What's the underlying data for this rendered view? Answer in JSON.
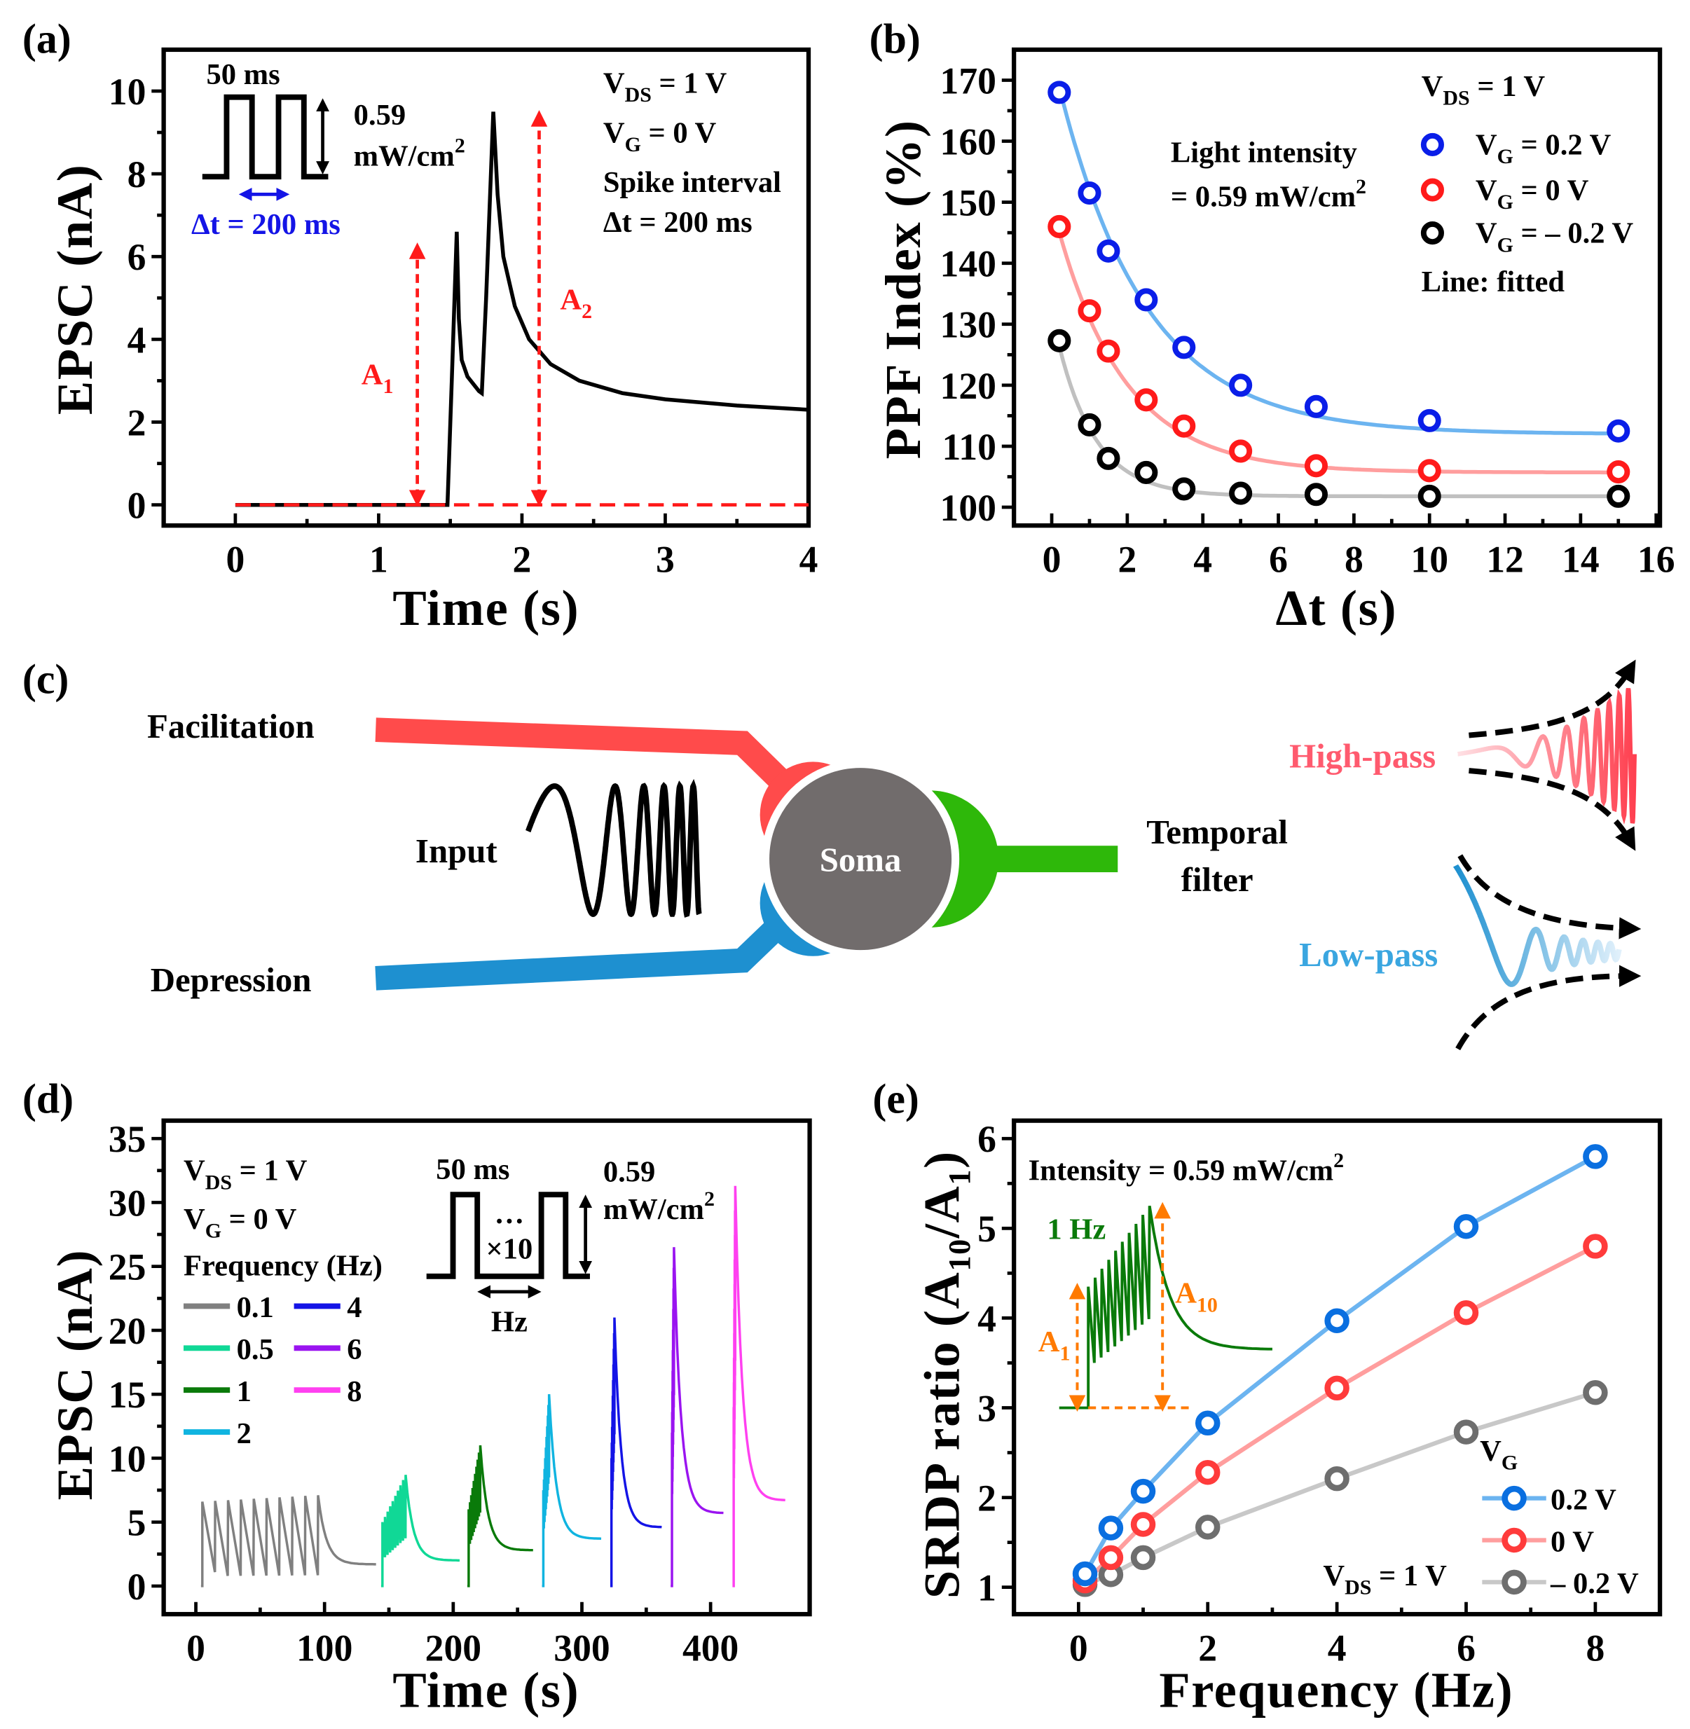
{
  "panels": {
    "a": {
      "label": "(a)"
    },
    "b": {
      "label": "(b)"
    },
    "c": {
      "label": "(c)"
    },
    "d": {
      "label": "(d)"
    },
    "e": {
      "label": "(e)"
    }
  },
  "chart_data": [
    {
      "id": "a",
      "type": "line",
      "xlabel": "Time (s)",
      "ylabel": "EPSC (nA)",
      "xlim": [
        -0.5,
        4
      ],
      "ylim": [
        -0.5,
        11
      ],
      "xticks": [
        0,
        1,
        2,
        3,
        4
      ],
      "yticks": [
        0,
        2,
        4,
        6,
        8,
        10
      ],
      "curve": {
        "color": "#000000",
        "x": [
          0,
          1.48,
          1.51,
          1.545,
          1.56,
          1.58,
          1.62,
          1.7,
          1.72,
          1.75,
          1.8,
          1.83,
          1.87,
          1.95,
          2.05,
          2.2,
          2.4,
          2.7,
          3.0,
          3.5,
          4.0
        ],
        "y": [
          0,
          0,
          3,
          6.6,
          4.5,
          3.5,
          3.1,
          2.75,
          2.7,
          5,
          9.5,
          7.5,
          6,
          4.8,
          4,
          3.4,
          3.0,
          2.7,
          2.55,
          2.4,
          2.3
        ]
      },
      "baseline": {
        "y": 0,
        "color": "#ff1a1a",
        "style": "dashed"
      },
      "arrows": [
        {
          "label": "A",
          "sub": "1",
          "x": 1.27,
          "y": 6.3
        },
        {
          "label": "A",
          "sub": "2",
          "x": 2.12,
          "y": 9.5
        }
      ],
      "inset": {
        "pulse_width": "50 ms",
        "intensity_top": "0.59",
        "intensity_unit": "mW/cm",
        "intensity_exp": "2",
        "interval": "Δt = 200 ms"
      },
      "annotations": {
        "vds": {
          "v": "V",
          "sub": "DS",
          "rest": " = 1 V"
        },
        "vg": {
          "v": "V",
          "sub": "G",
          "rest": " = 0 V"
        },
        "spike": "Spike interval",
        "dt": "Δt = 200 ms"
      }
    },
    {
      "id": "b",
      "type": "scatter",
      "xlabel": "Δt (s)",
      "ylabel": "PPF Index (%)",
      "xlim": [
        -1,
        16.1
      ],
      "ylim": [
        97,
        175
      ],
      "xticks": [
        0,
        2,
        4,
        6,
        8,
        10,
        12,
        14,
        16
      ],
      "yticks": [
        100,
        110,
        120,
        130,
        140,
        150,
        160,
        170
      ],
      "x": [
        0.2,
        1,
        1.5,
        2.5,
        3.5,
        5,
        7,
        10,
        15
      ],
      "series": [
        {
          "name": "V_G = 0.2 V",
          "marker": "#0a1ee8",
          "line": "#6cb4f0",
          "values": [
            168,
            151.5,
            142,
            134,
            126.2,
            120,
            116.5,
            114.2,
            112.5
          ],
          "fit": {
            "y0": 112,
            "A": 62,
            "tau": 2.3
          }
        },
        {
          "name": "V_G = 0 V",
          "marker": "#ff1a1a",
          "line": "#ff9e9e",
          "values": [
            146,
            132.2,
            125.6,
            117.6,
            113.3,
            109.2,
            106.8,
            106,
            105.8
          ],
          "fit": {
            "y0": 105.7,
            "A": 44,
            "tau": 1.8
          }
        },
        {
          "name": "V_G = – 0.2 V",
          "marker": "#000000",
          "line": "#c0c0c0",
          "values": [
            127.3,
            113.5,
            108,
            105.7,
            103,
            102.3,
            102.1,
            101.8,
            101.8
          ],
          "fit": {
            "y0": 101.8,
            "A": 30,
            "tau": 1.0
          }
        }
      ],
      "legend": {
        "position": "top-right",
        "vds": {
          "v": "V",
          "sub": "DS",
          "rest": " = 1 V"
        },
        "items": [
          {
            "v": "V",
            "sub": "G",
            "rest": " = 0.2 V"
          },
          {
            "v": "V",
            "sub": "G",
            "rest": " = 0 V"
          },
          {
            "v": "V",
            "sub": "G",
            "rest": " = – 0.2 V"
          }
        ],
        "note": "Line: fitted"
      },
      "annotations": {
        "line1": "Light intensity",
        "line2": "= 0.59 mW/cm",
        "exp": "2"
      }
    },
    {
      "id": "d",
      "type": "line",
      "xlabel": "Time (s)",
      "ylabel": "EPSC (nA)",
      "xlim": [
        -25,
        477
      ],
      "ylim": [
        -2.2,
        36.4
      ],
      "xticks": [
        0,
        100,
        200,
        300,
        400
      ],
      "yticks": [
        0,
        5,
        10,
        15,
        20,
        25,
        30,
        35
      ],
      "series": [
        {
          "name": "0.1",
          "freq": 0.1,
          "color": "#808080",
          "start": 5,
          "first_peak": 6.6,
          "last_peak": 7.1,
          "trough_frac": 0.12,
          "end_time": 140,
          "end_value": 1.7
        },
        {
          "name": "0.5",
          "freq": 0.5,
          "color": "#10d896",
          "start": 145,
          "first_peak": 5.0,
          "last_peak": 8.7,
          "trough_frac": 0.45,
          "end_time": 205,
          "end_value": 2.0
        },
        {
          "name": "1",
          "freq": 1,
          "color": "#0a7a0a",
          "start": 212,
          "first_peak": 6.0,
          "last_peak": 11.0,
          "trough_frac": 0.55,
          "end_time": 262,
          "end_value": 2.8
        },
        {
          "name": "2",
          "freq": 2,
          "color": "#10b4e0",
          "start": 270,
          "first_peak": 7.5,
          "last_peak": 15.0,
          "trough_frac": 0.6,
          "end_time": 315,
          "end_value": 3.7
        },
        {
          "name": "4",
          "freq": 4,
          "color": "#1414e6",
          "start": 323,
          "first_peak": 10,
          "last_peak": 21.0,
          "trough_frac": 0.6,
          "end_time": 362,
          "end_value": 4.6
        },
        {
          "name": "6",
          "freq": 6,
          "color": "#9a14f0",
          "start": 370,
          "first_peak": 12,
          "last_peak": 26.5,
          "trough_frac": 0.6,
          "end_time": 410,
          "end_value": 5.7
        },
        {
          "name": "8",
          "freq": 8,
          "color": "#ff40f0",
          "start": 418,
          "first_peak": 14,
          "last_peak": 31.3,
          "trough_frac": 0.6,
          "end_time": 458,
          "end_value": 6.7
        }
      ],
      "legend": {
        "title": "Frequency (Hz)",
        "position": "top-left"
      },
      "annotations": {
        "vds": {
          "v": "V",
          "sub": "DS",
          "rest": " = 1 V"
        },
        "vg": {
          "v": "V",
          "sub": "G",
          "rest": " = 0 V"
        },
        "pulse_width": "50 ms",
        "dots": "…",
        "repeat": "×10",
        "hz": "Hz",
        "intensity_top": "0.59",
        "intensity_unit": "mW/cm",
        "intensity_exp": "2"
      }
    },
    {
      "id": "e",
      "type": "line",
      "xlabel": "Frequency (Hz)",
      "ylabel": {
        "pre": "SRDP ratio (A",
        "sub1": "10",
        "mid": "/A",
        "sub2": "1",
        "post": ")"
      },
      "xlim": [
        -1,
        9
      ],
      "ylim": [
        0.7,
        6.2
      ],
      "xticks": [
        0,
        2,
        4,
        6,
        8
      ],
      "yticks": [
        1,
        2,
        3,
        4,
        5,
        6
      ],
      "x": [
        0.1,
        0.5,
        1,
        2,
        4,
        6,
        8
      ],
      "series": [
        {
          "name": "0.2 V",
          "marker": "#0a6fe0",
          "line": "#6cb4f0",
          "values": [
            1.15,
            1.66,
            2.07,
            2.83,
            3.97,
            5.02,
            5.8
          ]
        },
        {
          "name": "0 V",
          "marker": "#ff3b3b",
          "line": "#ff9e9e",
          "values": [
            1.07,
            1.33,
            1.7,
            2.28,
            3.22,
            4.06,
            4.8
          ]
        },
        {
          "name": "– 0.2 V",
          "marker": "#6e6e6e",
          "line": "#c8c8c8",
          "values": [
            1.03,
            1.14,
            1.33,
            1.67,
            2.21,
            2.73,
            3.17
          ]
        }
      ],
      "legend": {
        "title": {
          "v": "V",
          "sub": "G"
        },
        "position": "bottom-right"
      },
      "annotations": {
        "intensity": "Intensity = 0.59 mW/cm",
        "exp": "2",
        "vds": {
          "v": "V",
          "sub": "DS",
          "rest": " = 1 V"
        },
        "inset_label": "1 Hz",
        "a1": {
          "v": "A",
          "sub": "1"
        },
        "a10": {
          "v": "A",
          "sub": "10"
        }
      },
      "inset": {
        "color": "#0a7a0a",
        "arrow_color": "#ff7a00",
        "baseline": 3,
        "first_peak": 4.35,
        "last_peak": 5.25,
        "start": 0.15,
        "end_spikes": 1.1,
        "end_time": 3.0,
        "end_value": 3.65
      }
    }
  ],
  "diagram": {
    "facilitation": "Facilitation",
    "depression": "Depression",
    "input": "Input",
    "soma": "Soma",
    "temporal": "Temporal",
    "filter": "filter",
    "high_pass": "High-pass",
    "low_pass": "Low-pass",
    "colors": {
      "facilitation": "#ff4b4b",
      "depression": "#1e90d0",
      "output": "#2eb80a",
      "soma": "#716c6c",
      "high_pass": "#ff5a6e",
      "low_pass": "#3aa6e0"
    }
  }
}
